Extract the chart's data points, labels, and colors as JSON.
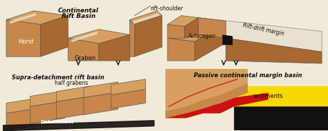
{
  "bg_color": "#f0ead8",
  "brown": "#c8874a",
  "brown_dark": "#a86830",
  "brown_light": "#d8a060",
  "brown_shadow": "#8a5520",
  "yellow": "#f8d800",
  "red": "#cc1111",
  "black": "#111111",
  "white": "#ffffff",
  "gray_white": "#e8e0d0",
  "title1": "Continental",
  "title1b": "Rift Basin",
  "label_rift_shoulder": "rift-shoulder",
  "label_horst": "Horst",
  "label_graben": "Graben",
  "label_aulacogen": "Aulacogen",
  "label_rift_drift": "Rift-drift margin",
  "title2": "Supra-detachment rift basin",
  "label_half_grabens": "half grabens",
  "label_detachment": "Detachment",
  "title3": "Passive continental margin basin",
  "label_sediments": "sediments"
}
